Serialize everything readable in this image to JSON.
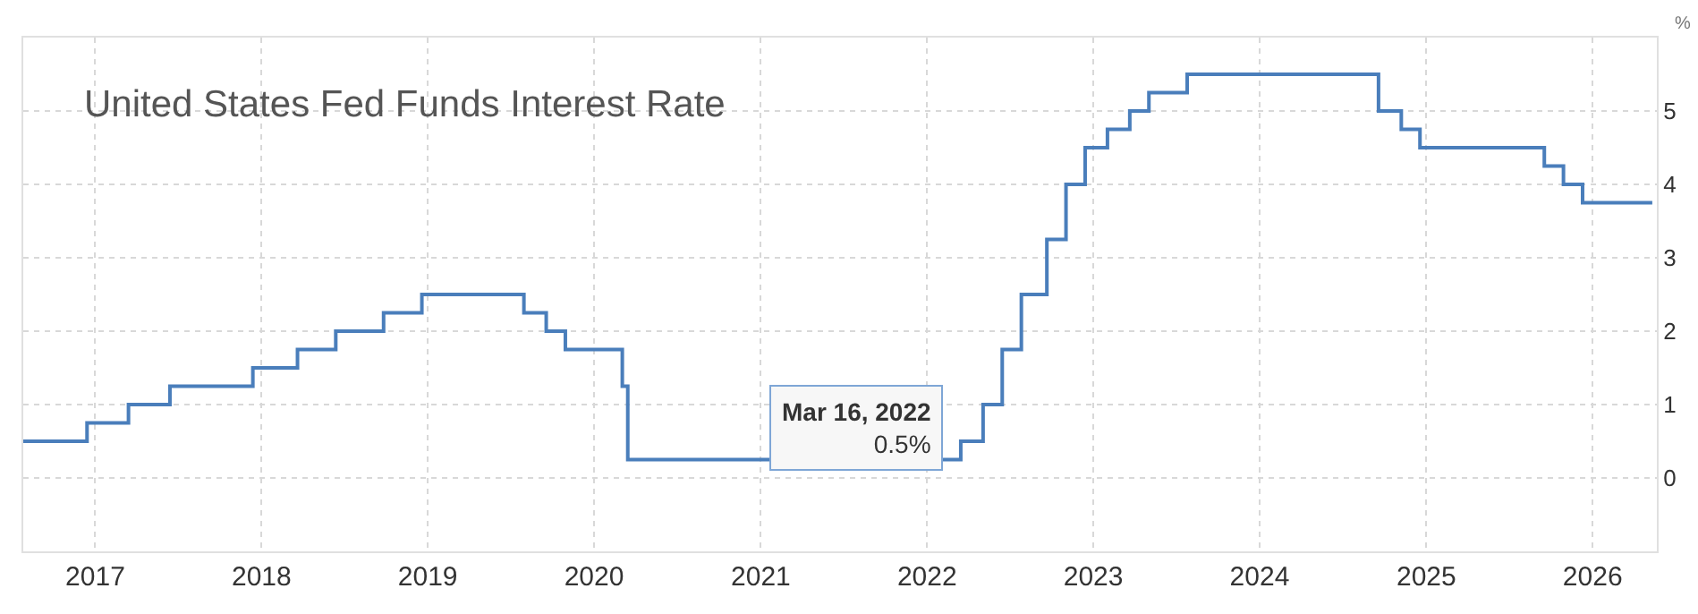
{
  "chart_data": {
    "type": "step",
    "title": "United States Fed Funds Interest Rate",
    "ylabel": "%",
    "x": [
      "2016-07-27",
      "2016-12-14",
      "2017-03-15",
      "2017-06-14",
      "2017-12-13",
      "2018-03-21",
      "2018-06-13",
      "2018-09-26",
      "2018-12-19",
      "2019-07-31",
      "2019-09-18",
      "2019-10-30",
      "2020-03-03",
      "2020-03-15",
      "2022-03-16",
      "2022-05-04",
      "2022-06-15",
      "2022-07-27",
      "2022-09-21",
      "2022-11-02",
      "2022-12-14",
      "2023-02-01",
      "2023-03-22",
      "2023-05-03",
      "2023-07-26",
      "2024-09-18",
      "2024-11-07",
      "2024-12-18",
      "2025-09-17",
      "2025-10-29",
      "2025-12-10",
      "2026-05-12"
    ],
    "series": [
      {
        "color": "#4a7ebb",
        "values": [
          0.5,
          0.75,
          1.0,
          1.25,
          1.5,
          1.75,
          2.0,
          2.25,
          2.5,
          2.25,
          2.0,
          1.75,
          1.25,
          0.25,
          0.5,
          1.0,
          1.75,
          2.5,
          3.25,
          4.0,
          4.5,
          4.75,
          5.0,
          5.25,
          5.5,
          5.0,
          4.75,
          4.5,
          4.25,
          4.0,
          3.75,
          3.75
        ]
      }
    ],
    "xlim": [
      "2016-07-27",
      "2026-05-22"
    ],
    "xticks": [
      {
        "value": "2017",
        "label": "2017"
      },
      {
        "value": "2018",
        "label": "2018"
      },
      {
        "value": "2019",
        "label": "2019"
      },
      {
        "value": "2020",
        "label": "2020"
      },
      {
        "value": "2021",
        "label": "2021"
      },
      {
        "value": "2022",
        "label": "2022"
      },
      {
        "value": "2023",
        "label": "2023"
      },
      {
        "value": "2024",
        "label": "2024"
      },
      {
        "value": "2025",
        "label": "2025"
      },
      {
        "value": "2026",
        "label": "2026"
      }
    ],
    "ylim": [
      -1,
      6
    ],
    "yticks": [
      0,
      1,
      2,
      3,
      4,
      5
    ],
    "annotations": [
      {
        "text": "Mar 16, 2022\n0.5%",
        "x": "2022-03-16",
        "y": 0.5
      }
    ],
    "grid": true,
    "legend": false,
    "marker": "none",
    "line_style": "solid"
  }
}
